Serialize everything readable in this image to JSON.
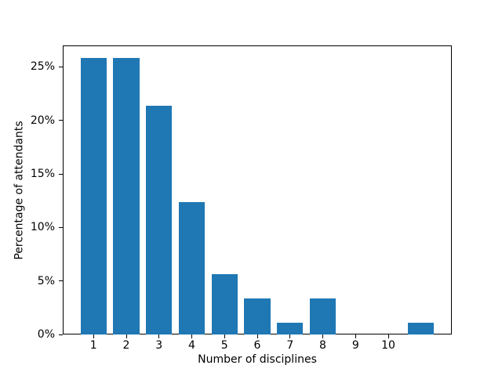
{
  "figure": {
    "background": "#ffffff"
  },
  "chart_data": {
    "type": "bar",
    "x": [
      1,
      2,
      3,
      4,
      5,
      6,
      7,
      8,
      9,
      10,
      11
    ],
    "values": [
      25.84,
      25.84,
      21.35,
      12.36,
      5.62,
      3.37,
      1.12,
      3.37,
      0,
      0,
      1.12
    ],
    "title": "",
    "xlabel": "Number of disciplines",
    "ylabel": "Percentage of attendants",
    "xlim": [
      0.06,
      11.94
    ],
    "ylim": [
      0,
      27.0
    ],
    "xticks": [
      1,
      2,
      3,
      4,
      5,
      6,
      7,
      8,
      9,
      10
    ],
    "xtick_labels": [
      "1",
      "2",
      "3",
      "4",
      "5",
      "6",
      "7",
      "8",
      "9",
      "10"
    ],
    "yticks": [
      0,
      5,
      10,
      15,
      20,
      25
    ],
    "ytick_labels": [
      "0%",
      "5%",
      "10%",
      "15%",
      "20%",
      "25%"
    ],
    "bar_width": 0.8,
    "bar_color": "#1f77b4",
    "axis_color": "#000000",
    "text_color": "#000000",
    "grid": false,
    "legend_position": "none"
  }
}
